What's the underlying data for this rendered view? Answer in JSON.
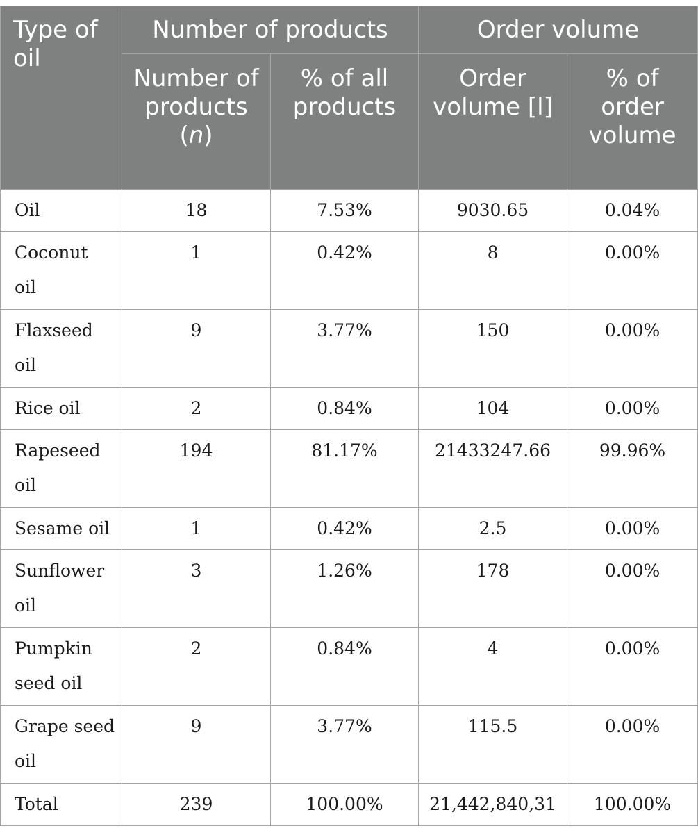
{
  "header": {
    "type_of_oil": "Type of oil",
    "number_of_products": "Number of products",
    "order_volume": "Order volume",
    "number_of_products_n_label": "Number of products (",
    "n": "n",
    "close_paren": ")",
    "pct_all_products": "% of all products",
    "order_volume_l": "Order volume [l]",
    "pct_order_volume": "% of order volume"
  },
  "rows": [
    {
      "type": "Oil",
      "count": "18",
      "pct_products": "7.53%",
      "volume": "9030.65",
      "pct_volume": "0.04%"
    },
    {
      "type": "Coconut oil",
      "count": "1",
      "pct_products": "0.42%",
      "volume": "8",
      "pct_volume": "0.00%"
    },
    {
      "type": "Flaxseed oil",
      "count": "9",
      "pct_products": "3.77%",
      "volume": "150",
      "pct_volume": "0.00%"
    },
    {
      "type": "Rice oil",
      "count": "2",
      "pct_products": "0.84%",
      "volume": "104",
      "pct_volume": "0.00%"
    },
    {
      "type": "Rapeseed oil",
      "count": "194",
      "pct_products": "81.17%",
      "volume": "21433247.66",
      "pct_volume": "99.96%"
    },
    {
      "type": "Sesame oil",
      "count": "1",
      "pct_products": "0.42%",
      "volume": "2.5",
      "pct_volume": "0.00%"
    },
    {
      "type": "Sunflower oil",
      "count": "3",
      "pct_products": "1.26%",
      "volume": "178",
      "pct_volume": "0.00%"
    },
    {
      "type": "Pumpkin seed oil",
      "count": "2",
      "pct_products": "0.84%",
      "volume": "4",
      "pct_volume": "0.00%"
    },
    {
      "type": "Grape seed oil",
      "count": "9",
      "pct_products": "3.77%",
      "volume": "115.5",
      "pct_volume": "0.00%"
    },
    {
      "type": "Total",
      "count": "239",
      "pct_products": "100.00%",
      "volume": "21,442,840,31",
      "pct_volume": "100.00%"
    }
  ]
}
